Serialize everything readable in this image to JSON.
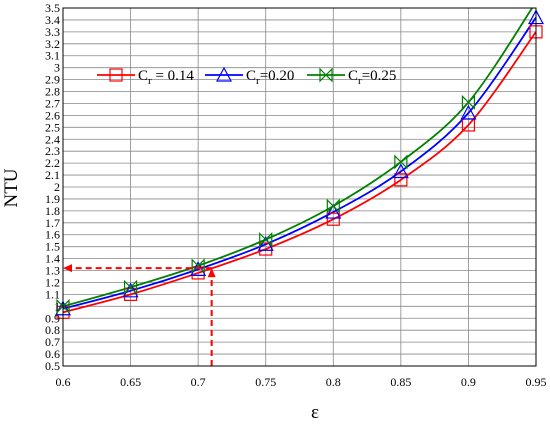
{
  "chart_data": {
    "type": "line",
    "xlabel": "ε",
    "ylabel": "NTU",
    "xlim": [
      0.6,
      0.95
    ],
    "ylim": [
      0.5,
      3.5
    ],
    "x_ticks": [
      "0.6",
      "0.65",
      "0.7",
      "0.75",
      "0.8",
      "0.85",
      "0.9",
      "0.95"
    ],
    "y_ticks": [
      "0.5",
      "0.6",
      "0.7",
      "0.8",
      "0.9",
      "1",
      "1.1",
      "1.2",
      "1.3",
      "1.4",
      "1.5",
      "1.6",
      "1.7",
      "1.8",
      "1.9",
      "2",
      "2.1",
      "2.2",
      "2.3",
      "2.4",
      "2.5",
      "2.6",
      "2.7",
      "2.8",
      "2.9",
      "3",
      "3.1",
      "3.2",
      "3.3",
      "3.4",
      "3.5"
    ],
    "grid": true,
    "legend_position": "top",
    "series": [
      {
        "label_main": "C",
        "label_sub": "r",
        "label_rest": " = 0.14",
        "color": "#ff0000",
        "marker": "square",
        "x": [
          0.6,
          0.65,
          0.7,
          0.75,
          0.8,
          0.85,
          0.9,
          0.95
        ],
        "y": [
          0.95,
          1.1,
          1.28,
          1.48,
          1.73,
          2.06,
          2.52,
          3.3
        ]
      },
      {
        "label_main": "C",
        "label_sub": "r",
        "label_rest": "=0.20",
        "color": "#0000ff",
        "marker": "triangle",
        "x": [
          0.6,
          0.65,
          0.7,
          0.75,
          0.8,
          0.85,
          0.9,
          0.95
        ],
        "y": [
          0.98,
          1.13,
          1.31,
          1.52,
          1.79,
          2.13,
          2.62,
          3.42
        ]
      },
      {
        "label_main": "C",
        "label_sub": "r",
        "label_rest": "=0.25",
        "color": "#008000",
        "marker": "bowtie",
        "x": [
          0.6,
          0.65,
          0.7,
          0.75,
          0.8,
          0.85,
          0.9,
          0.95
        ],
        "y": [
          1.0,
          1.16,
          1.34,
          1.56,
          1.84,
          2.21,
          2.71,
          3.55
        ]
      }
    ],
    "annotations": [
      {
        "type": "dashed-arrow-path",
        "color": "#ff0000",
        "from": [
          0.71,
          0.5
        ],
        "corner": [
          0.71,
          1.32
        ],
        "to": [
          0.6,
          1.32
        ]
      }
    ]
  }
}
